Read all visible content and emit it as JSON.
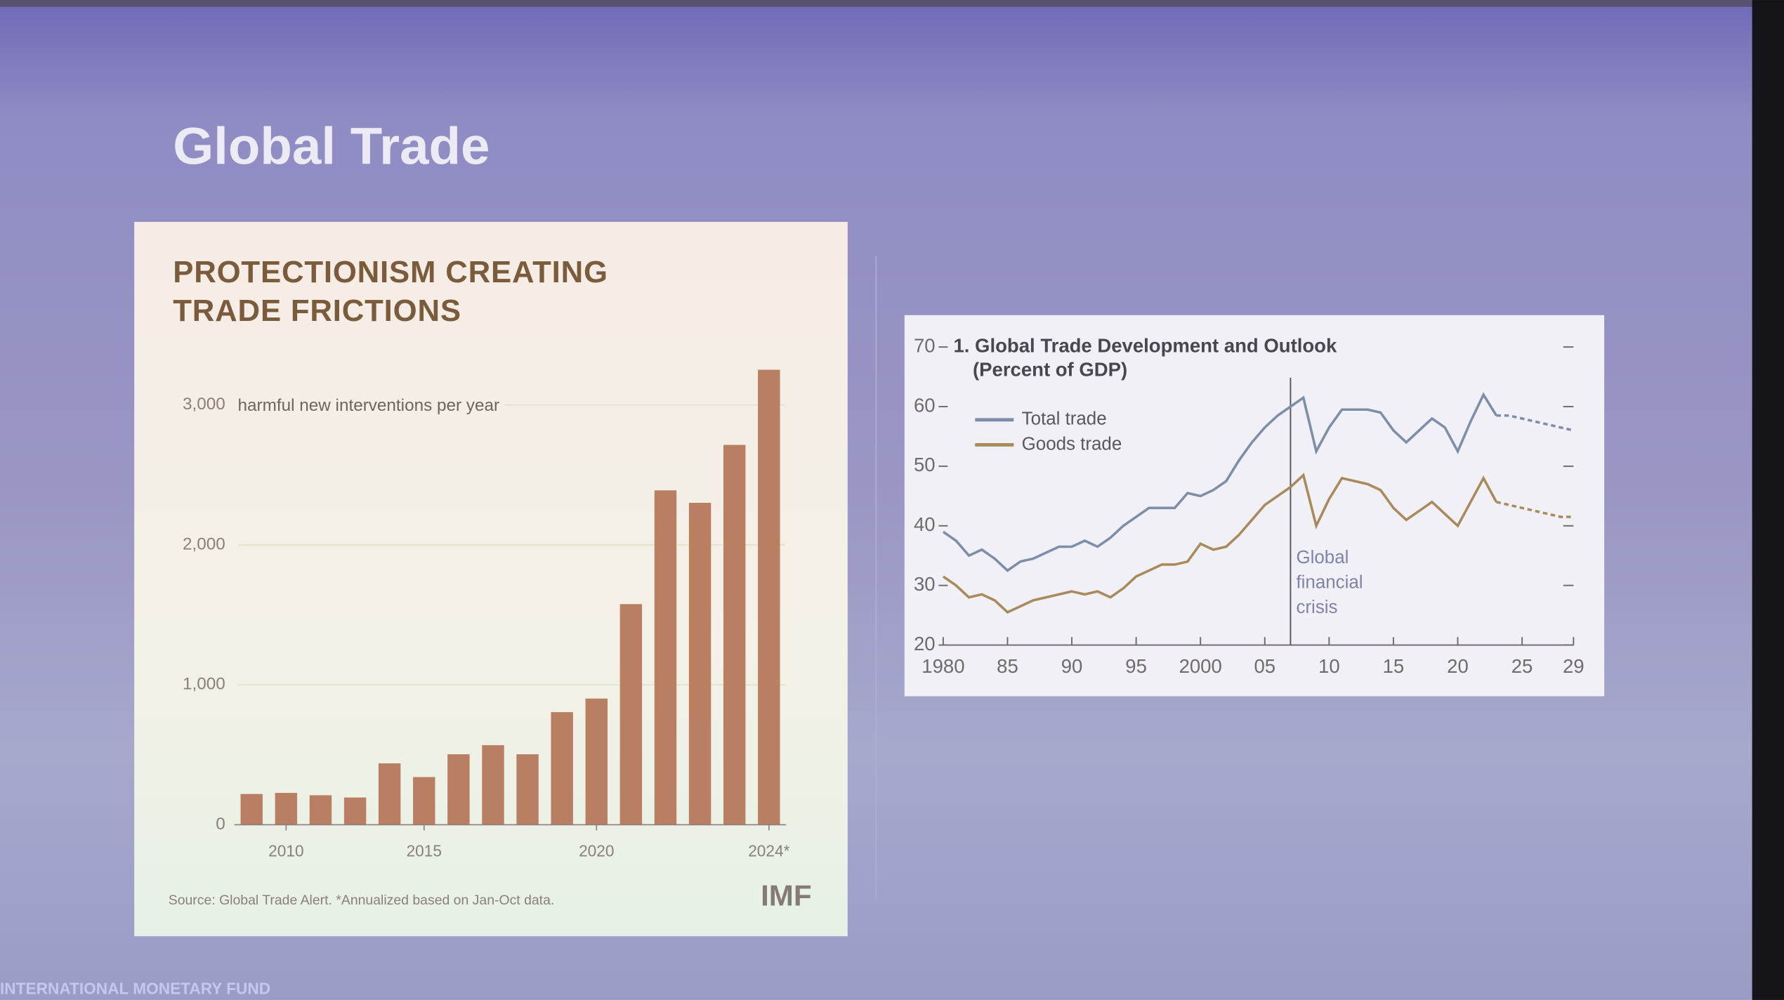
{
  "slide": {
    "title": "Global Trade",
    "footer": "INTERNATIONAL MONETARY FUND"
  },
  "chart_data": [
    {
      "type": "bar",
      "title": "PROTECTIONISM CREATING TRADE FRICTIONS",
      "ylabel": "harmful new interventions per year",
      "source": "Source: Global Trade Alert. *Annualized based on Jan-Oct data.",
      "logo": "IMF",
      "categories": [
        null,
        "2010",
        null,
        null,
        null,
        "2015",
        null,
        null,
        null,
        null,
        "2020",
        null,
        null,
        null,
        null,
        "2024*"
      ],
      "values": [
        220,
        228,
        211,
        195,
        439,
        341,
        504,
        569,
        504,
        805,
        902,
        1577,
        2390,
        2301,
        2715,
        3252
      ],
      "color": "#b97f62",
      "ylim": [
        0,
        3300
      ],
      "yticks": [
        0,
        {
          "value": 1000,
          "label": "1,000"
        },
        {
          "value": 2000,
          "label": "2,000"
        },
        {
          "value": 3000,
          "label": "3,000"
        }
      ],
      "grid": true
    },
    {
      "type": "line",
      "title": "1. Global Trade Development and Outlook",
      "subtitle": "(Percent of GDP)",
      "x": [
        1980,
        1981,
        1982,
        1983,
        1984,
        1985,
        1986,
        1987,
        1988,
        1989,
        1990,
        1991,
        1992,
        1993,
        1994,
        1995,
        1996,
        1997,
        1998,
        1999,
        2000,
        2001,
        2002,
        2003,
        2004,
        2005,
        2006,
        2007,
        2008,
        2009,
        2010,
        2011,
        2012,
        2013,
        2014,
        2015,
        2016,
        2017,
        2018,
        2019,
        2020,
        2021,
        2022,
        2023,
        2024,
        2025,
        2026,
        2027,
        2028,
        2029
      ],
      "series": [
        {
          "name": "Total trade",
          "color": "#7d8fa8",
          "values": [
            39,
            37.5,
            35,
            36,
            34.5,
            32.5,
            34,
            34.5,
            35.5,
            36.5,
            36.5,
            37.5,
            36.5,
            38,
            40,
            41.5,
            43,
            43,
            43,
            45.5,
            45,
            46,
            47.5,
            51,
            54,
            56.5,
            58.5,
            60,
            61.5,
            52.5,
            56.5,
            59.5,
            59.5,
            59.5,
            59,
            56,
            54,
            56,
            58,
            56.5,
            52.5,
            57.5,
            62,
            58.5,
            58.5,
            58,
            57.5,
            57,
            56.5,
            56
          ]
        },
        {
          "name": "Goods trade",
          "color": "#a88a5c",
          "values": [
            31.5,
            30,
            28,
            28.5,
            27.5,
            25.5,
            26.5,
            27.5,
            28,
            28.5,
            29,
            28.5,
            29,
            28,
            29.5,
            31.5,
            32.5,
            33.5,
            33.5,
            34,
            37,
            36,
            36.5,
            38.5,
            41,
            43.5,
            45,
            46.5,
            48.5,
            40,
            44.5,
            48,
            47.5,
            47,
            46,
            43,
            41,
            42.5,
            44,
            42,
            40,
            44,
            48,
            44,
            43.5,
            43,
            42.5,
            42,
            41.5,
            41.5
          ]
        }
      ],
      "projection_start": 2023,
      "annotation": {
        "text": "Global financial crisis",
        "x": 2007
      },
      "xlim": [
        1980,
        2029
      ],
      "xticks": [
        1980,
        {
          "value": 1985,
          "label": "85"
        },
        {
          "value": 1990,
          "label": "90"
        },
        {
          "value": 1995,
          "label": "95"
        },
        2000,
        {
          "value": 2005,
          "label": "05"
        },
        {
          "value": 2010,
          "label": "10"
        },
        {
          "value": 2015,
          "label": "15"
        },
        {
          "value": 2020,
          "label": "20"
        },
        {
          "value": 2025,
          "label": "25"
        },
        {
          "value": 2029,
          "label": "29"
        }
      ],
      "ylim": [
        20,
        70
      ],
      "yticks": [
        20,
        30,
        40,
        50,
        60,
        70
      ],
      "legend": "upper left"
    }
  ]
}
